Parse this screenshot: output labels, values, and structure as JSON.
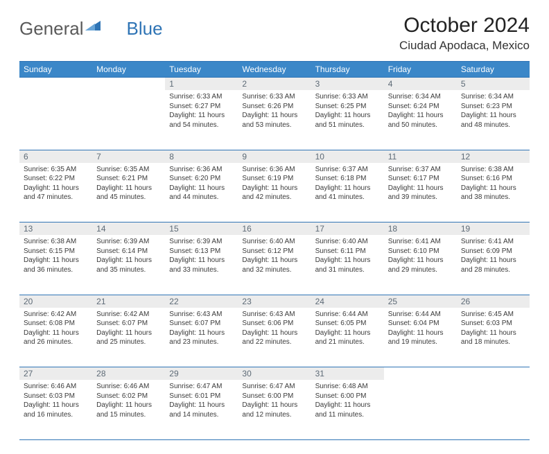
{
  "logo": {
    "text1": "General",
    "text2": "Blue"
  },
  "title": "October 2024",
  "location": "Ciudad Apodaca, Mexico",
  "colors": {
    "header_bg": "#3b87c8",
    "rule": "#2f74b5",
    "daynum_bg": "#ececec",
    "daynum_color": "#5d6a76"
  },
  "fonts": {
    "title_size": 30,
    "location_size": 17,
    "header_size": 12,
    "body_size": 10
  },
  "weekdays": [
    "Sunday",
    "Monday",
    "Tuesday",
    "Wednesday",
    "Thursday",
    "Friday",
    "Saturday"
  ],
  "weeks": [
    [
      null,
      null,
      {
        "n": "1",
        "sr": "6:33 AM",
        "ss": "6:27 PM",
        "dl": "11 hours and 54 minutes."
      },
      {
        "n": "2",
        "sr": "6:33 AM",
        "ss": "6:26 PM",
        "dl": "11 hours and 53 minutes."
      },
      {
        "n": "3",
        "sr": "6:33 AM",
        "ss": "6:25 PM",
        "dl": "11 hours and 51 minutes."
      },
      {
        "n": "4",
        "sr": "6:34 AM",
        "ss": "6:24 PM",
        "dl": "11 hours and 50 minutes."
      },
      {
        "n": "5",
        "sr": "6:34 AM",
        "ss": "6:23 PM",
        "dl": "11 hours and 48 minutes."
      }
    ],
    [
      {
        "n": "6",
        "sr": "6:35 AM",
        "ss": "6:22 PM",
        "dl": "11 hours and 47 minutes."
      },
      {
        "n": "7",
        "sr": "6:35 AM",
        "ss": "6:21 PM",
        "dl": "11 hours and 45 minutes."
      },
      {
        "n": "8",
        "sr": "6:36 AM",
        "ss": "6:20 PM",
        "dl": "11 hours and 44 minutes."
      },
      {
        "n": "9",
        "sr": "6:36 AM",
        "ss": "6:19 PM",
        "dl": "11 hours and 42 minutes."
      },
      {
        "n": "10",
        "sr": "6:37 AM",
        "ss": "6:18 PM",
        "dl": "11 hours and 41 minutes."
      },
      {
        "n": "11",
        "sr": "6:37 AM",
        "ss": "6:17 PM",
        "dl": "11 hours and 39 minutes."
      },
      {
        "n": "12",
        "sr": "6:38 AM",
        "ss": "6:16 PM",
        "dl": "11 hours and 38 minutes."
      }
    ],
    [
      {
        "n": "13",
        "sr": "6:38 AM",
        "ss": "6:15 PM",
        "dl": "11 hours and 36 minutes."
      },
      {
        "n": "14",
        "sr": "6:39 AM",
        "ss": "6:14 PM",
        "dl": "11 hours and 35 minutes."
      },
      {
        "n": "15",
        "sr": "6:39 AM",
        "ss": "6:13 PM",
        "dl": "11 hours and 33 minutes."
      },
      {
        "n": "16",
        "sr": "6:40 AM",
        "ss": "6:12 PM",
        "dl": "11 hours and 32 minutes."
      },
      {
        "n": "17",
        "sr": "6:40 AM",
        "ss": "6:11 PM",
        "dl": "11 hours and 31 minutes."
      },
      {
        "n": "18",
        "sr": "6:41 AM",
        "ss": "6:10 PM",
        "dl": "11 hours and 29 minutes."
      },
      {
        "n": "19",
        "sr": "6:41 AM",
        "ss": "6:09 PM",
        "dl": "11 hours and 28 minutes."
      }
    ],
    [
      {
        "n": "20",
        "sr": "6:42 AM",
        "ss": "6:08 PM",
        "dl": "11 hours and 26 minutes."
      },
      {
        "n": "21",
        "sr": "6:42 AM",
        "ss": "6:07 PM",
        "dl": "11 hours and 25 minutes."
      },
      {
        "n": "22",
        "sr": "6:43 AM",
        "ss": "6:07 PM",
        "dl": "11 hours and 23 minutes."
      },
      {
        "n": "23",
        "sr": "6:43 AM",
        "ss": "6:06 PM",
        "dl": "11 hours and 22 minutes."
      },
      {
        "n": "24",
        "sr": "6:44 AM",
        "ss": "6:05 PM",
        "dl": "11 hours and 21 minutes."
      },
      {
        "n": "25",
        "sr": "6:44 AM",
        "ss": "6:04 PM",
        "dl": "11 hours and 19 minutes."
      },
      {
        "n": "26",
        "sr": "6:45 AM",
        "ss": "6:03 PM",
        "dl": "11 hours and 18 minutes."
      }
    ],
    [
      {
        "n": "27",
        "sr": "6:46 AM",
        "ss": "6:03 PM",
        "dl": "11 hours and 16 minutes."
      },
      {
        "n": "28",
        "sr": "6:46 AM",
        "ss": "6:02 PM",
        "dl": "11 hours and 15 minutes."
      },
      {
        "n": "29",
        "sr": "6:47 AM",
        "ss": "6:01 PM",
        "dl": "11 hours and 14 minutes."
      },
      {
        "n": "30",
        "sr": "6:47 AM",
        "ss": "6:00 PM",
        "dl": "11 hours and 12 minutes."
      },
      {
        "n": "31",
        "sr": "6:48 AM",
        "ss": "6:00 PM",
        "dl": "11 hours and 11 minutes."
      },
      null,
      null
    ]
  ],
  "labels": {
    "sunrise": "Sunrise:",
    "sunset": "Sunset:",
    "daylight": "Daylight:"
  }
}
